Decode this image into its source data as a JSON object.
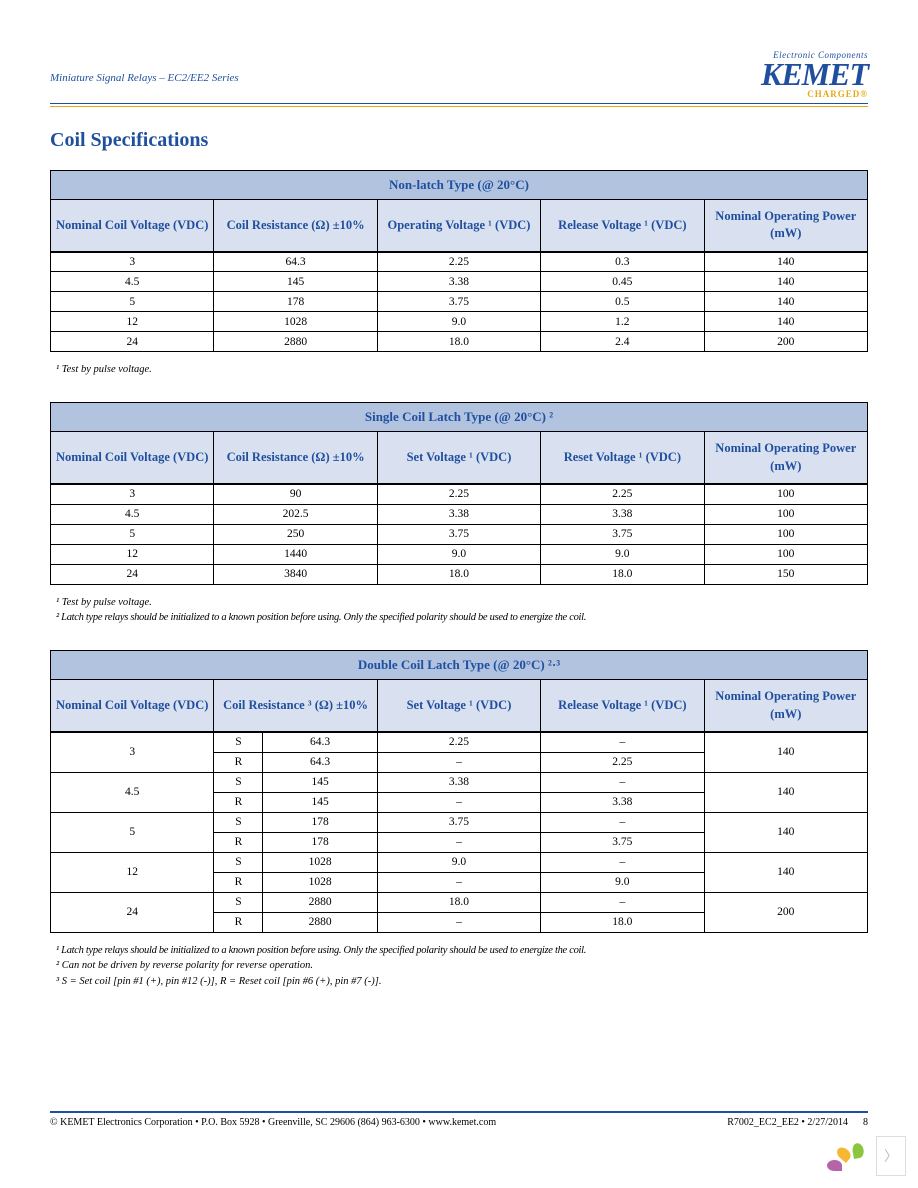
{
  "header": {
    "doc_title": "Miniature Signal Relays – EC2/EE2 Series",
    "logo_tag": "Electronic Components",
    "logo_main": "KEMET",
    "logo_charged": "CHARGED"
  },
  "section_title": "Coil Specifications",
  "colors": {
    "brand_blue": "#1f4f9e",
    "brand_gold": "#e6a817",
    "th_title_bg": "#b2c3e0",
    "th_col_bg": "#d9e1f0"
  },
  "table1": {
    "title": "Non-latch Type (@ 20°C)",
    "columns": [
      "Nominal Coil Voltage (VDC)",
      "Coil Resistance (Ω) ±10%",
      "Operating Voltage ¹ (VDC)",
      "Release Voltage ¹ (VDC)",
      "Nominal Operating Power (mW)"
    ],
    "rows": [
      [
        "3",
        "64.3",
        "2.25",
        "0.3",
        "140"
      ],
      [
        "4.5",
        "145",
        "3.38",
        "0.45",
        "140"
      ],
      [
        "5",
        "178",
        "3.75",
        "0.5",
        "140"
      ],
      [
        "12",
        "1028",
        "9.0",
        "1.2",
        "140"
      ],
      [
        "24",
        "2880",
        "18.0",
        "2.4",
        "200"
      ]
    ],
    "notes": [
      "¹ Test by pulse voltage."
    ]
  },
  "table2": {
    "title": "Single Coil Latch Type (@ 20°C) ²",
    "columns": [
      "Nominal Coil Voltage (VDC)",
      "Coil Resistance (Ω) ±10%",
      "Set Voltage ¹ (VDC)",
      "Reset Voltage ¹ (VDC)",
      "Nominal Operating Power (mW)"
    ],
    "rows": [
      [
        "3",
        "90",
        "2.25",
        "2.25",
        "100"
      ],
      [
        "4.5",
        "202.5",
        "3.38",
        "3.38",
        "100"
      ],
      [
        "5",
        "250",
        "3.75",
        "3.75",
        "100"
      ],
      [
        "12",
        "1440",
        "9.0",
        "9.0",
        "100"
      ],
      [
        "24",
        "3840",
        "18.0",
        "18.0",
        "150"
      ]
    ],
    "notes": [
      "¹ Test by pulse voltage.",
      "² Latch type relays should be initialized to a known position before using. Only the specified polarity should be used to energize the coil."
    ]
  },
  "table3": {
    "title": "Double Coil Latch Type (@ 20°C) ²·³",
    "columns": [
      "Nominal Coil Voltage (VDC)",
      "Coil Resistance ³ (Ω) ±10%",
      "Set Voltage ¹ (VDC)",
      "Release Voltage ¹ (VDC)",
      "Nominal Operating Power (mW)"
    ],
    "rows": [
      {
        "v": "3",
        "s": {
          "r": "64.3",
          "set": "2.25",
          "rel": "–"
        },
        "r": {
          "r": "64.3",
          "set": "–",
          "rel": "2.25"
        },
        "p": "140"
      },
      {
        "v": "4.5",
        "s": {
          "r": "145",
          "set": "3.38",
          "rel": "–"
        },
        "r": {
          "r": "145",
          "set": "–",
          "rel": "3.38"
        },
        "p": "140"
      },
      {
        "v": "5",
        "s": {
          "r": "178",
          "set": "3.75",
          "rel": "–"
        },
        "r": {
          "r": "178",
          "set": "–",
          "rel": "3.75"
        },
        "p": "140"
      },
      {
        "v": "12",
        "s": {
          "r": "1028",
          "set": "9.0",
          "rel": "–"
        },
        "r": {
          "r": "1028",
          "set": "–",
          "rel": "9.0"
        },
        "p": "140"
      },
      {
        "v": "24",
        "s": {
          "r": "2880",
          "set": "18.0",
          "rel": "–"
        },
        "r": {
          "r": "2880",
          "set": "–",
          "rel": "18.0"
        },
        "p": "200"
      }
    ],
    "sr_labels": {
      "s": "S",
      "r": "R"
    },
    "notes": [
      "¹ Latch type relays should be initialized to a known position before using. Only the specified polarity should be used to energize the coil.",
      "² Can not be driven by reverse polarity for reverse operation.",
      "³ S = Set coil [pin #1 (+), pin #12 (-)], R = Reset coil [pin #6 (+), pin #7 (-)]."
    ]
  },
  "footer": {
    "left": "© KEMET Electronics Corporation • P.O. Box 5928 • Greenville, SC 29606 (864) 963-6300 • www.kemet.com",
    "right": "R7002_EC2_EE2 • 2/27/2014",
    "page": "8"
  },
  "corner": {
    "petals": [
      "#8cc63f",
      "#f7b733",
      "#b565a7",
      "#5b9bd5"
    ]
  }
}
